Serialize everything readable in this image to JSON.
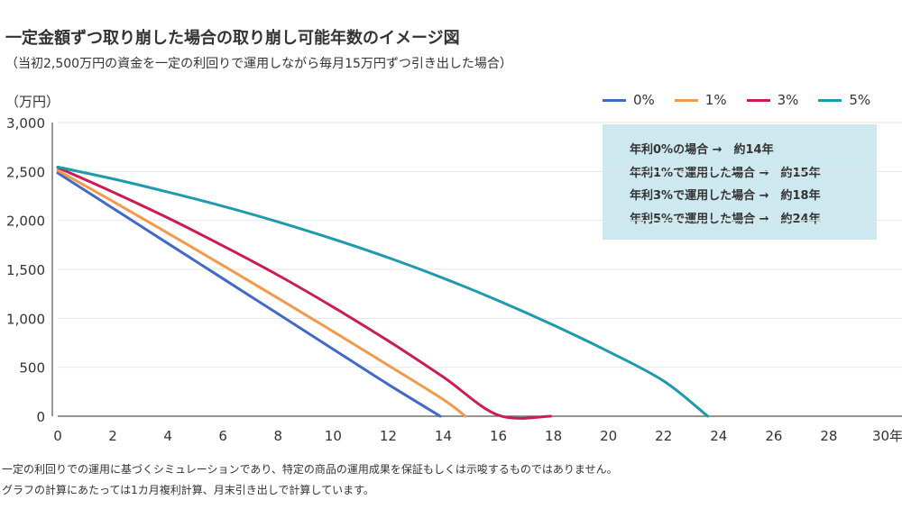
{
  "title": "一定金額ずつ取り崩した場合の取り崩し可能年数のイメージ図",
  "subtitle": "（当初2,500万円の資金を一定の利回りで運用しながら毎月15万円ずつ引き出した場合）",
  "unit_label": "（万円）",
  "info_box": [
    "年利0%の場合 →　約14年",
    "年利1%で運用した場合 →　約15年",
    "年利3%で運用した場合 →　約18年",
    "年利5%で運用した場合 →　約24年"
  ],
  "notes": [
    "一定の利回りでの運用に基づくシミュレーションであり、特定の商品の運用成果を保証もしくは示唆するものではありません。",
    "グラフの計算にあたっては1カ月複利計算、月末引き出しで計算しています。"
  ],
  "chart_data": {
    "type": "line",
    "x_tick_labels": [
      "0",
      "2",
      "4",
      "6",
      "8",
      "10",
      "12",
      "14",
      "16",
      "18",
      "20",
      "22",
      "24",
      "26",
      "28",
      "30年"
    ],
    "y_tick_labels": [
      "0",
      "500",
      "1,000",
      "1,500",
      "2,000",
      "2,500",
      "3,000"
    ],
    "xlim": [
      0,
      30
    ],
    "ylim": [
      0,
      3000
    ],
    "grid": "horizontal",
    "legend_position": "top-right",
    "series": [
      {
        "name": "0%",
        "color": "#4169c8",
        "x": [
          0,
          2,
          4,
          6,
          8,
          10,
          12,
          13.89
        ],
        "y": [
          2485,
          2125,
          1765,
          1405,
          1045,
          685,
          325,
          0
        ]
      },
      {
        "name": "1%",
        "color": "#f2994a",
        "x": [
          0,
          2,
          4,
          6,
          8,
          10,
          12,
          14,
          14.8
        ],
        "y": [
          2510,
          2195,
          1870,
          1540,
          1205,
          865,
          520,
          170,
          0
        ]
      },
      {
        "name": "3%",
        "color": "#cc1d52",
        "x": [
          0,
          2,
          4,
          6,
          8,
          10,
          12,
          14,
          16,
          17.9
        ],
        "y": [
          2540,
          2290,
          2025,
          1740,
          1440,
          1115,
          770,
          400,
          10,
          0
        ]
      },
      {
        "name": "5%",
        "color": "#1e9aab",
        "x": [
          0,
          2,
          4,
          6,
          8,
          10,
          12,
          14,
          16,
          18,
          20,
          22,
          23.6
        ],
        "y": [
          2545,
          2425,
          2290,
          2145,
          1985,
          1810,
          1620,
          1410,
          1180,
          930,
          660,
          360,
          0
        ]
      }
    ]
  }
}
